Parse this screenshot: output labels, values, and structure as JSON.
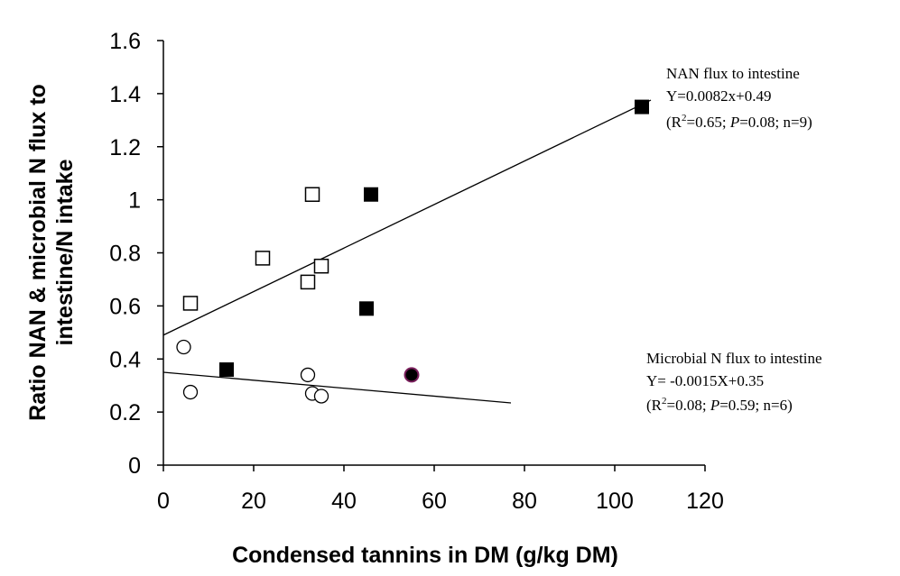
{
  "chart_data": {
    "type": "scatter",
    "xlabel": "Condensed tannins in DM (g/kg DM)",
    "ylabel_line1": "Ratio NAN & microbial N flux to",
    "ylabel_line2": "intestine/N intake",
    "xlim": [
      0,
      120
    ],
    "ylim": [
      0,
      1.6
    ],
    "x_ticks": [
      "0",
      "20",
      "40",
      "60",
      "80",
      "100",
      "120"
    ],
    "y_ticks": [
      "0",
      "0.2",
      "0.4",
      "0.6",
      "0.8",
      "1",
      "1.2",
      "1.4",
      "1.6"
    ],
    "series": [
      {
        "marker": "open-square",
        "points": [
          [
            6,
            0.61
          ],
          [
            22,
            0.78
          ],
          [
            32,
            0.69
          ],
          [
            33,
            1.02
          ],
          [
            35,
            0.75
          ]
        ]
      },
      {
        "marker": "filled-square",
        "points": [
          [
            14,
            0.36
          ],
          [
            45,
            0.59
          ],
          [
            46,
            1.02
          ],
          [
            106,
            1.35
          ]
        ]
      },
      {
        "marker": "open-circle",
        "points": [
          [
            4.5,
            0.445
          ],
          [
            6,
            0.275
          ],
          [
            32,
            0.34
          ],
          [
            33,
            0.27
          ],
          [
            35,
            0.26
          ]
        ]
      },
      {
        "marker": "filled-circle",
        "color": "#000000",
        "edge_color": "#7a1f5c",
        "points": [
          [
            55,
            0.34
          ]
        ]
      }
    ],
    "fit_lines": [
      {
        "slope": 0.0082,
        "intercept": 0.49,
        "x_range": [
          0,
          108
        ]
      },
      {
        "slope": -0.0015,
        "intercept": 0.35,
        "x_range": [
          0,
          77
        ]
      }
    ],
    "annotations": {
      "nan": {
        "line1": "NAN flux to intestine",
        "line2": "Y=0.0082x+0.49",
        "r2_prefix": "(R",
        "r2_sup": "2",
        "r2_value": "=0.65; ",
        "p_label": "P",
        "rest": "=0.08; n=9)"
      },
      "microbial": {
        "line1": "Microbial N flux to intestine",
        "line2": "Y= -0.0015X+0.35",
        "r2_prefix": "(R",
        "r2_sup": "2",
        "r2_value": "=0.08; ",
        "p_label": "P",
        "rest": "=0.59; n=6)"
      }
    }
  }
}
